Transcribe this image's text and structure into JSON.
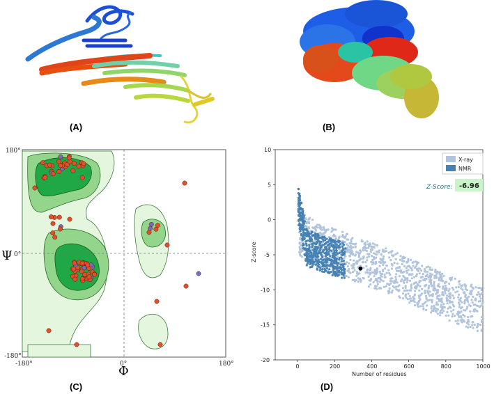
{
  "panels": {
    "a": {
      "label": "(A)"
    },
    "b": {
      "label": "(B)"
    },
    "c": {
      "label": "(C)"
    },
    "d": {
      "label": "(D)"
    }
  },
  "ramachandran": {
    "x_symbol": "Φ",
    "y_symbol": "Ψ",
    "tick_labels": {
      "y_top": "180°",
      "y_mid": "0°",
      "y_bottom": "-180°",
      "x_left": "-180°",
      "x_mid": "0°",
      "x_right": "180°"
    },
    "colors": {
      "favored": "#21b24a",
      "allowed": "#82d27e",
      "generous": "#def3d8",
      "residue": "#e0502a",
      "glycine": "#7b6bb6"
    }
  },
  "chart_data": {
    "type": "scatter",
    "title": "",
    "xlabel": "Number of residues",
    "ylabel": "Z-score",
    "xlim": [
      -120,
      1000
    ],
    "ylim": [
      -20,
      10
    ],
    "x_ticks": [
      "0",
      "200",
      "400",
      "600",
      "800",
      "1000"
    ],
    "y_ticks": [
      "10",
      "5",
      "0",
      "-5",
      "-10",
      "-15",
      "-20"
    ],
    "legend": {
      "position": "top-right",
      "entries": [
        {
          "name": "X-ray",
          "color": "#b0c4de"
        },
        {
          "name": "NMR",
          "color": "#4682b4"
        }
      ]
    },
    "zscore_label": "Z-Score:",
    "zscore_value": "-6.96",
    "series": [
      {
        "name": "X-ray",
        "color": "#b0c4de",
        "trend": [
          [
            10,
            -2
          ],
          [
            100,
            -3.5
          ],
          [
            200,
            -4.5
          ],
          [
            300,
            -5.5
          ],
          [
            400,
            -6.5
          ],
          [
            500,
            -7.5
          ],
          [
            600,
            -8.7
          ],
          [
            700,
            -9.8
          ],
          [
            800,
            -11
          ],
          [
            900,
            -12
          ],
          [
            1000,
            -13
          ]
        ]
      },
      {
        "name": "NMR",
        "color": "#4682b4",
        "trend": [
          [
            5,
            2
          ],
          [
            50,
            -4
          ],
          [
            100,
            -4.5
          ],
          [
            150,
            -5
          ],
          [
            200,
            -5.5
          ],
          [
            260,
            -5.8
          ]
        ]
      }
    ],
    "highlight": {
      "x": 340,
      "y": -6.96
    }
  }
}
